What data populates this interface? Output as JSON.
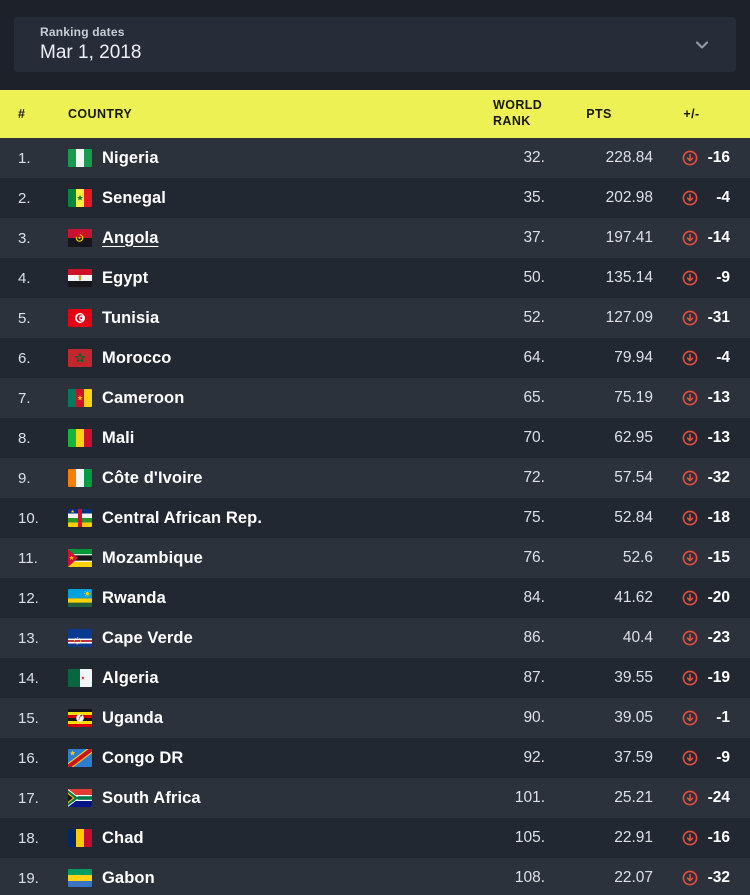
{
  "filter": {
    "label": "Ranking dates",
    "value": "Mar 1, 2018"
  },
  "table": {
    "headers": {
      "num": "#",
      "country": "COUNTRY",
      "world_rank": "WORLD RANK",
      "pts": "PTS",
      "change": "+/-"
    },
    "rows": [
      {
        "pos": "1.",
        "country": "Nigeria",
        "flag": "ng",
        "world_rank": "32.",
        "pts": "228.84",
        "change": "-16",
        "underlined": false
      },
      {
        "pos": "2.",
        "country": "Senegal",
        "flag": "sn",
        "world_rank": "35.",
        "pts": "202.98",
        "change": "-4",
        "underlined": false
      },
      {
        "pos": "3.",
        "country": "Angola",
        "flag": "ao",
        "world_rank": "37.",
        "pts": "197.41",
        "change": "-14",
        "underlined": true
      },
      {
        "pos": "4.",
        "country": "Egypt",
        "flag": "eg",
        "world_rank": "50.",
        "pts": "135.14",
        "change": "-9",
        "underlined": false
      },
      {
        "pos": "5.",
        "country": "Tunisia",
        "flag": "tn",
        "world_rank": "52.",
        "pts": "127.09",
        "change": "-31",
        "underlined": false
      },
      {
        "pos": "6.",
        "country": "Morocco",
        "flag": "ma",
        "world_rank": "64.",
        "pts": "79.94",
        "change": "-4",
        "underlined": false
      },
      {
        "pos": "7.",
        "country": "Cameroon",
        "flag": "cm",
        "world_rank": "65.",
        "pts": "75.19",
        "change": "-13",
        "underlined": false
      },
      {
        "pos": "8.",
        "country": "Mali",
        "flag": "ml",
        "world_rank": "70.",
        "pts": "62.95",
        "change": "-13",
        "underlined": false
      },
      {
        "pos": "9.",
        "country": "Côte d'Ivoire",
        "flag": "ci",
        "world_rank": "72.",
        "pts": "57.54",
        "change": "-32",
        "underlined": false
      },
      {
        "pos": "10.",
        "country": "Central African Rep.",
        "flag": "cf",
        "world_rank": "75.",
        "pts": "52.84",
        "change": "-18",
        "underlined": false
      },
      {
        "pos": "11.",
        "country": "Mozambique",
        "flag": "mz",
        "world_rank": "76.",
        "pts": "52.6",
        "change": "-15",
        "underlined": false
      },
      {
        "pos": "12.",
        "country": "Rwanda",
        "flag": "rw",
        "world_rank": "84.",
        "pts": "41.62",
        "change": "-20",
        "underlined": false
      },
      {
        "pos": "13.",
        "country": "Cape Verde",
        "flag": "cv",
        "world_rank": "86.",
        "pts": "40.4",
        "change": "-23",
        "underlined": false
      },
      {
        "pos": "14.",
        "country": "Algeria",
        "flag": "dz",
        "world_rank": "87.",
        "pts": "39.55",
        "change": "-19",
        "underlined": false
      },
      {
        "pos": "15.",
        "country": "Uganda",
        "flag": "ug",
        "world_rank": "90.",
        "pts": "39.05",
        "change": "-1",
        "underlined": false
      },
      {
        "pos": "16.",
        "country": "Congo DR",
        "flag": "cd",
        "world_rank": "92.",
        "pts": "37.59",
        "change": "-9",
        "underlined": false
      },
      {
        "pos": "17.",
        "country": "South Africa",
        "flag": "za",
        "world_rank": "101.",
        "pts": "25.21",
        "change": "-24",
        "underlined": false
      },
      {
        "pos": "18.",
        "country": "Chad",
        "flag": "td",
        "world_rank": "105.",
        "pts": "22.91",
        "change": "-16",
        "underlined": false
      },
      {
        "pos": "19.",
        "country": "Gabon",
        "flag": "ga",
        "world_rank": "108.",
        "pts": "22.07",
        "change": "-32",
        "underlined": false
      }
    ]
  },
  "theme": {
    "background": "#1d222a",
    "panel": "#272d38",
    "header_yellow": "#eef154",
    "row_light": "#2c323c",
    "row_dark": "#222831",
    "accent_red": "#e4503b",
    "header_text": "#171a10",
    "text_primary": "#ffffff",
    "text_secondary": "#dce0e6"
  }
}
